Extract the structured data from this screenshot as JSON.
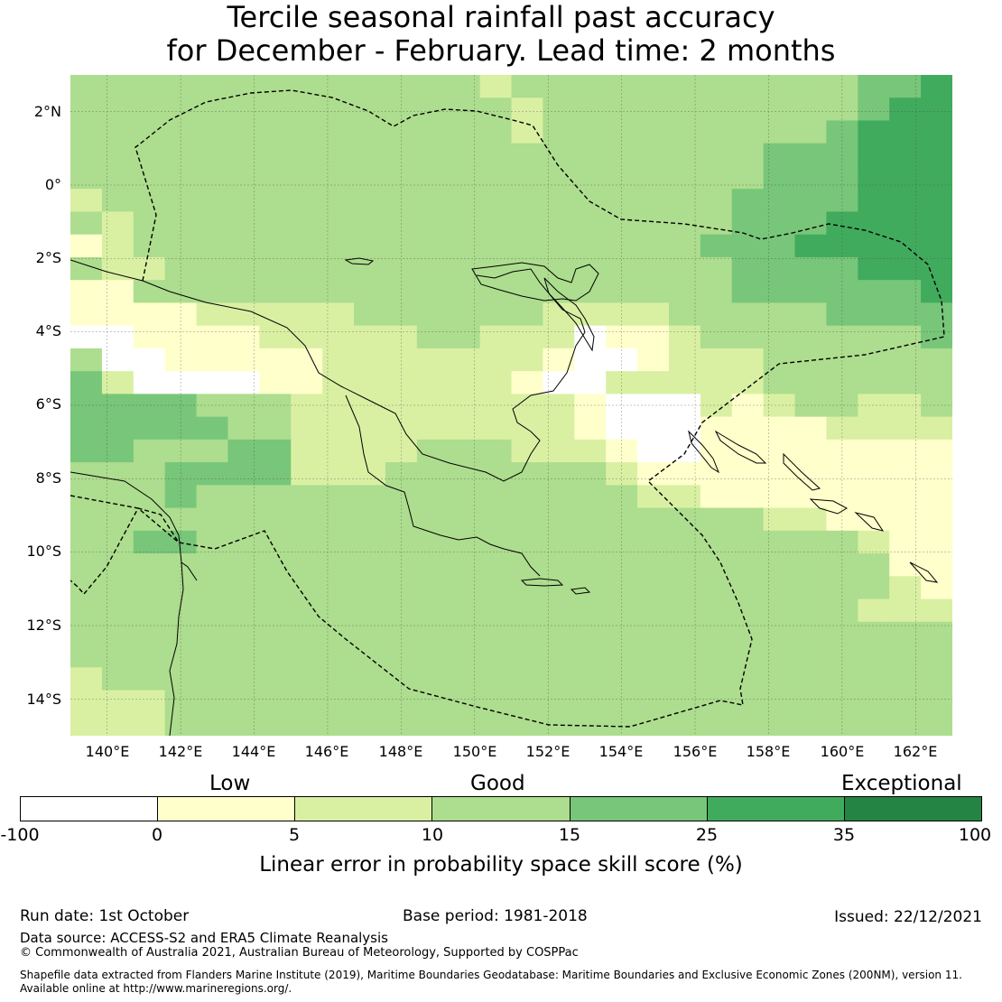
{
  "title": {
    "line1": "Tercile seasonal rainfall past accuracy",
    "line2": "for December - February. Lead time: 2 months"
  },
  "map": {
    "region": "Papua New Guinea EEZ",
    "lon_range": [
      139,
      163
    ],
    "lat_range": [
      -15,
      3
    ],
    "lat_labels": [
      "2°N",
      "0°",
      "2°S",
      "4°S",
      "6°S",
      "8°S",
      "10°S",
      "12°S",
      "14°S"
    ],
    "lon_labels": [
      "140°E",
      "142°E",
      "144°E",
      "146°E",
      "148°E",
      "150°E",
      "152°E",
      "154°E",
      "156°E",
      "158°E",
      "160°E",
      "162°E"
    ],
    "skill_grid_rows": [
      "3333333333333233333333333445",
      "3333333333333323333333333455",
      "3333333333333323333333334555",
      "3333333333333333333333444555",
      "3333333333333333333333444555",
      "2333333333333333333334444555",
      "3233333333333333333334445555",
      "1233333333333333333344455555",
      "3223333333333333333334444555",
      "1133333333333333333334444445",
      "1111222223333332222333334444",
      "0011112222233222011233333334",
      "3001111122222221001222333333",
      "4200001122222210022222333333",
      "4444333222222222100021233223",
      "4444433222222222100011112222",
      "4433344222233322210011111111",
      "3334444222333333321111111111",
      "3334333333333333332211111111",
      "3333333333333333333333221111",
      "3344333333333333333333333211",
      "3333333333333333333333333311",
      "3333333333333333333333333321",
      "3333333333333333333333333222",
      "3333333333333333333333333333",
      "3333333333333333333333333333",
      "2333333333333333333333333333",
      "2223333333333333333333333333",
      "2223333333333333333333333333"
    ]
  },
  "colorbar": {
    "categories": [
      "Low",
      "Good",
      "Exceptional"
    ],
    "ticks": [
      "-100",
      "0",
      "5",
      "10",
      "15",
      "25",
      "35",
      "100"
    ],
    "colors": [
      "#ffffff",
      "#ffffcc",
      "#d9f0a3",
      "#addd8e",
      "#78c679",
      "#41ab5d",
      "#238443"
    ],
    "label": "Linear error in probability space skill score (%)"
  },
  "footer": {
    "run_date": "Run date: 1st October",
    "base_period": "Base period: 1981-2018",
    "issued": "Issued: 22/12/2021",
    "data_source": "Data source: ACCESS-S2 and ERA5 Climate Reanalysis",
    "copyright": "© Commonwealth of Australia 2021, Australian Bureau of Meteorology, Supported by COSPPac",
    "shapefile_line1": "Shapefile data extracted from Flanders Marine Institute (2019), Maritime Boundaries Geodatabase: Maritime Boundaries and Exclusive Economic Zones (200NM), version 11.",
    "shapefile_line2": "Available online at http://www.marineregions.org/."
  }
}
